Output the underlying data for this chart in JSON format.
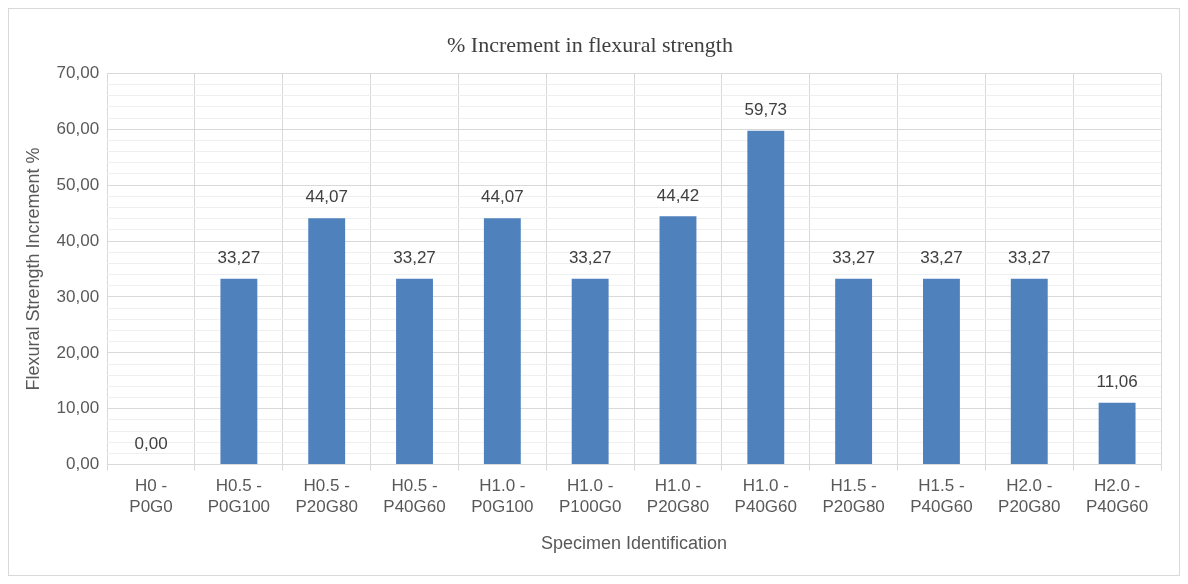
{
  "chart_data": {
    "type": "bar",
    "title": "% Increment in flexural strength",
    "xlabel": "Specimen Identification",
    "ylabel": "Flexural Strength Increment %",
    "categories": [
      "H0 - P0G0",
      "H0.5 - P0G100",
      "H0.5 - P20G80",
      "H0.5 - P40G60",
      "H1.0 - P0G100",
      "H1.0 - P100G0",
      "H1.0 - P20G80",
      "H1.0 - P40G60",
      "H1.5 - P20G80",
      "H1.5 - P40G60",
      "H2.0 - P20G80",
      "H2.0 - P40G60"
    ],
    "values": [
      0,
      33.27,
      44.07,
      33.27,
      44.07,
      33.27,
      44.42,
      59.73,
      33.27,
      33.27,
      33.27,
      11.06
    ],
    "value_labels": [
      "0,00",
      "33,27",
      "44,07",
      "33,27",
      "44,07",
      "33,27",
      "44,42",
      "59,73",
      "33,27",
      "33,27",
      "33,27",
      "11,06"
    ],
    "color": "#4f81bd",
    "ylim": [
      0,
      70
    ],
    "yticks": [
      {
        "value": 0,
        "label": "0,00"
      },
      {
        "value": 2,
        "label": null
      },
      {
        "value": 4,
        "label": null
      },
      {
        "value": 6,
        "label": null
      },
      {
        "value": 8,
        "label": null
      },
      {
        "value": 10,
        "label": "10,00"
      },
      {
        "value": 12,
        "label": null
      },
      {
        "value": 14,
        "label": null
      },
      {
        "value": 16,
        "label": null
      },
      {
        "value": 18,
        "label": null
      },
      {
        "value": 20,
        "label": "20,00"
      },
      {
        "value": 22,
        "label": null
      },
      {
        "value": 24,
        "label": null
      },
      {
        "value": 26,
        "label": null
      },
      {
        "value": 28,
        "label": null
      },
      {
        "value": 30,
        "label": "30,00"
      },
      {
        "value": 32,
        "label": null
      },
      {
        "value": 34,
        "label": null
      },
      {
        "value": 36,
        "label": null
      },
      {
        "value": 38,
        "label": null
      },
      {
        "value": 40,
        "label": "40,00"
      },
      {
        "value": 42,
        "label": null
      },
      {
        "value": 44,
        "label": null
      },
      {
        "value": 46,
        "label": null
      },
      {
        "value": 48,
        "label": null
      },
      {
        "value": 50,
        "label": "50,00"
      },
      {
        "value": 52,
        "label": null
      },
      {
        "value": 54,
        "label": null
      },
      {
        "value": 56,
        "label": null
      },
      {
        "value": 58,
        "label": null
      },
      {
        "value": 60,
        "label": "60,00"
      },
      {
        "value": 62,
        "label": null
      },
      {
        "value": 64,
        "label": null
      },
      {
        "value": 66,
        "label": null
      },
      {
        "value": 68,
        "label": null
      },
      {
        "value": 70,
        "label": "70,00"
      }
    ],
    "grid": true,
    "legend": false
  }
}
